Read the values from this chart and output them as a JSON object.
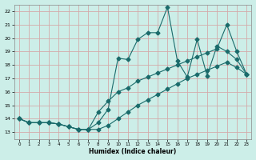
{
  "xlabel": "Humidex (Indice chaleur)",
  "bg_color": "#cceee8",
  "grid_color": "#d4aaaa",
  "line_color": "#1a6b6b",
  "xlim": [
    -0.5,
    23.5
  ],
  "ylim": [
    12.5,
    22.5
  ],
  "xticks": [
    0,
    1,
    2,
    3,
    4,
    5,
    6,
    7,
    8,
    9,
    10,
    11,
    12,
    13,
    14,
    15,
    16,
    17,
    18,
    19,
    20,
    21,
    22,
    23
  ],
  "yticks": [
    13,
    14,
    15,
    16,
    17,
    18,
    19,
    20,
    21,
    22
  ],
  "series1_x": [
    0,
    1,
    2,
    3,
    4,
    5,
    6,
    7,
    8,
    9,
    10,
    11,
    12,
    13,
    14,
    15,
    16,
    17,
    18,
    19,
    20,
    21,
    22,
    23
  ],
  "series1_y": [
    14.0,
    13.7,
    13.7,
    13.7,
    13.6,
    13.4,
    13.2,
    13.2,
    13.7,
    14.7,
    18.5,
    18.4,
    19.9,
    20.4,
    20.4,
    22.3,
    18.3,
    17.1,
    19.9,
    17.2,
    19.4,
    19.0,
    18.4,
    17.3
  ],
  "series2_x": [
    0,
    1,
    2,
    3,
    4,
    5,
    6,
    7,
    8,
    9,
    10,
    11,
    12,
    13,
    14,
    15,
    16,
    17,
    18,
    19,
    20,
    21,
    22,
    23
  ],
  "series2_y": [
    14.0,
    13.7,
    13.7,
    13.7,
    13.6,
    13.4,
    13.2,
    13.2,
    14.5,
    15.3,
    16.0,
    16.3,
    16.8,
    17.1,
    17.4,
    17.7,
    18.0,
    18.3,
    18.6,
    18.9,
    19.2,
    21.0,
    19.0,
    17.3
  ],
  "series3_x": [
    0,
    1,
    2,
    3,
    4,
    5,
    6,
    7,
    8,
    9,
    10,
    11,
    12,
    13,
    14,
    15,
    16,
    17,
    18,
    19,
    20,
    21,
    22,
    23
  ],
  "series3_y": [
    14.0,
    13.7,
    13.7,
    13.7,
    13.6,
    13.4,
    13.2,
    13.2,
    13.2,
    13.5,
    14.0,
    14.5,
    15.0,
    15.4,
    15.8,
    16.2,
    16.6,
    17.0,
    17.3,
    17.6,
    17.9,
    18.2,
    17.8,
    17.3
  ]
}
